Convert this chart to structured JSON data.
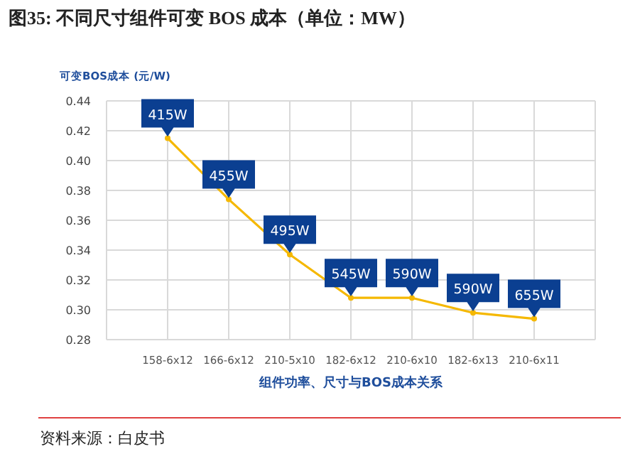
{
  "chart_data": {
    "type": "line",
    "title": "图35:   不同尺寸组件可变 BOS 成本（单位：MW）",
    "ylabel": "可变BOS成本 (元/W)",
    "xlabel": "组件功率、尺寸与BOS成本关系",
    "categories": [
      "158-6x12",
      "166-6x12",
      "210-5x10",
      "182-6x12",
      "210-6x10",
      "182-6x13",
      "210-6x11"
    ],
    "series": [
      {
        "color": "#f5b800",
        "values": [
          0.415,
          0.374,
          0.337,
          0.308,
          0.308,
          0.298,
          0.294
        ]
      }
    ],
    "ylim": [
      0.28,
      0.44
    ],
    "yticks": [
      {
        "value": 0.28,
        "label": "0.28"
      },
      {
        "value": 0.3,
        "label": "0.30"
      },
      {
        "value": 0.32,
        "label": "0.32"
      },
      {
        "value": 0.34,
        "label": "0.34"
      },
      {
        "value": 0.36,
        "label": "0.36"
      },
      {
        "value": 0.38,
        "label": "0.38"
      },
      {
        "value": 0.4,
        "label": "0.40"
      },
      {
        "value": 0.42,
        "label": "0.42"
      },
      {
        "value": 0.44,
        "label": "0.44"
      }
    ],
    "grid": true,
    "marker": "circle",
    "annotations": [
      {
        "text": "415W",
        "x": "158-6x12",
        "y": 0.415
      },
      {
        "text": "455W",
        "x": "166-6x12",
        "y": 0.374
      },
      {
        "text": "495W",
        "x": "210-5x10",
        "y": 0.337
      },
      {
        "text": "545W",
        "x": "182-6x12",
        "y": 0.308
      },
      {
        "text": "590W",
        "x": "210-6x10",
        "y": 0.308
      },
      {
        "text": "590W",
        "x": "182-6x13",
        "y": 0.298
      },
      {
        "text": "655W",
        "x": "210-6x11",
        "y": 0.294
      },
      "资料来源：白皮书"
    ]
  }
}
